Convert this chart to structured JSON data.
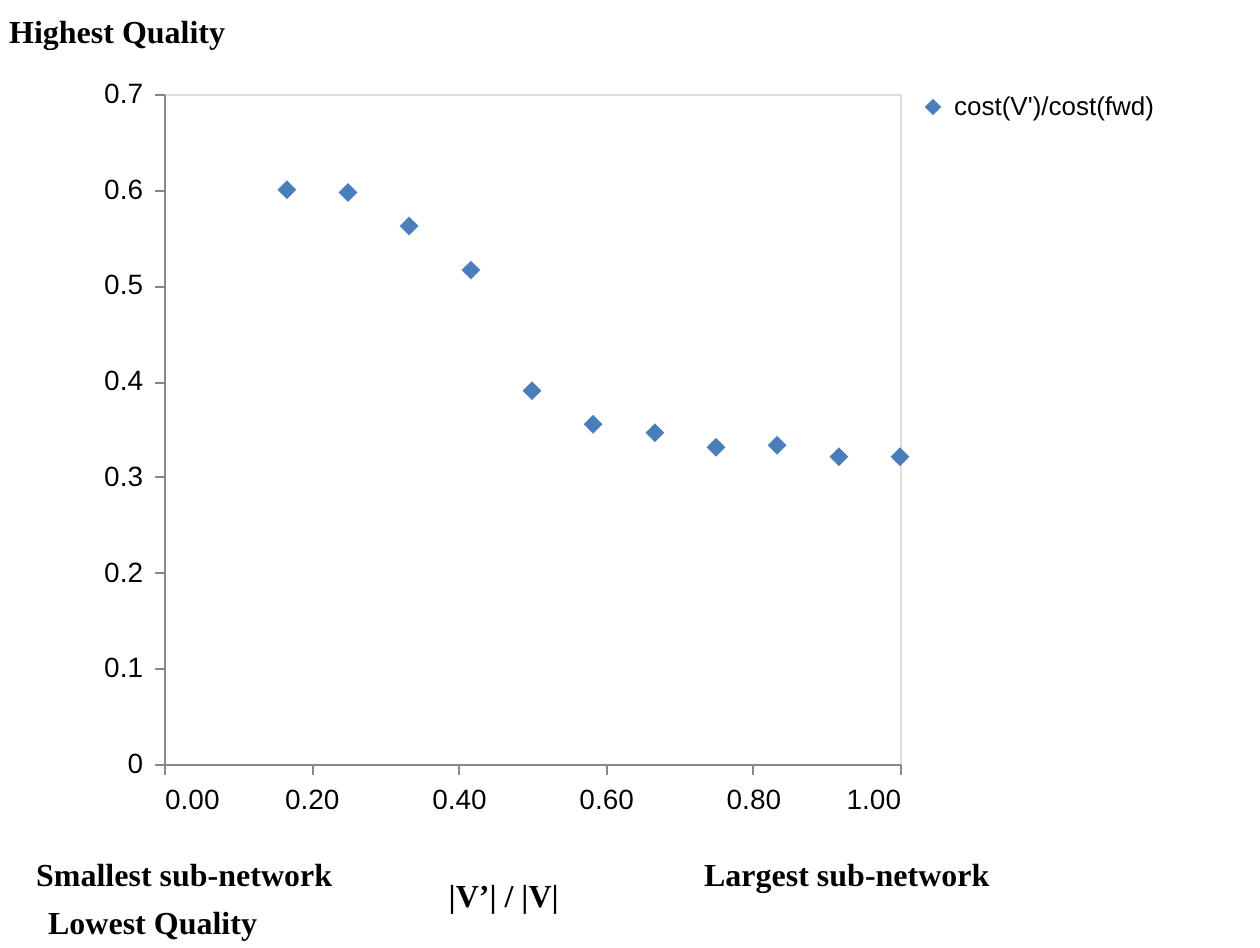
{
  "chart_data": {
    "type": "scatter",
    "ylabel": "Highest Quality",
    "xlabel": "|V’| / |V|",
    "annotations": [
      "Smallest sub-network",
      "Largest sub-network",
      "Lowest Quality"
    ],
    "x": [
      0.167,
      0.25,
      0.333,
      0.417,
      0.5,
      0.583,
      0.667,
      0.75,
      0.833,
      0.917,
      1.0
    ],
    "series": [
      {
        "name": "cost(V')/cost(fwd)",
        "color": "#4a7ebb",
        "values": [
          0.6,
          0.597,
          0.562,
          0.516,
          0.39,
          0.355,
          0.346,
          0.331,
          0.333,
          0.321,
          0.321
        ]
      }
    ],
    "xlim": [
      0,
      1
    ],
    "xticks": [
      {
        "value": 0,
        "label": "0.00"
      },
      {
        "value": 0.2,
        "label": "0.20"
      },
      {
        "value": 0.4,
        "label": "0.40"
      },
      {
        "value": 0.6,
        "label": "0.60"
      },
      {
        "value": 0.8,
        "label": "0.80"
      },
      {
        "value": 1,
        "label": "1.00"
      }
    ],
    "ylim": [
      0,
      0.7
    ],
    "yticks": [
      0,
      0.1,
      0.2,
      0.3,
      0.4,
      0.5,
      0.6,
      0.7
    ],
    "marker": "diamond",
    "legend": "right",
    "grid": false
  }
}
